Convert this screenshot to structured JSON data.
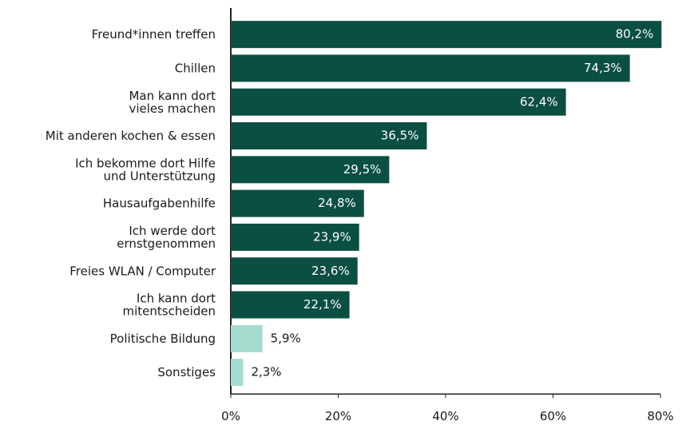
{
  "chart_data": {
    "type": "hbar",
    "categories": [
      "Freund*innen treffen",
      "Chillen",
      "Man kann dort\nvieles machen",
      "Mit anderen kochen & essen",
      "Ich bekomme dort Hilfe\nund Unterstützung",
      "Hausaufgabenhilfe",
      "Ich werde dort\nernstgenommen",
      "Freies WLAN / Computer",
      "Ich kann dort\nmitentscheiden",
      "Politische Bildung",
      "Sonstiges"
    ],
    "values": [
      80.2,
      74.3,
      62.4,
      36.5,
      29.5,
      24.8,
      23.9,
      23.6,
      22.1,
      5.9,
      2.3
    ],
    "value_labels": [
      "80,2%",
      "74,3%",
      "62,4%",
      "36,5%",
      "29,5%",
      "24,8%",
      "23,9%",
      "23,6%",
      "22,1%",
      "5,9%",
      "2,3%"
    ],
    "colors": [
      "#0b4f43",
      "#0b4f43",
      "#0b4f43",
      "#0b4f43",
      "#0b4f43",
      "#0b4f43",
      "#0b4f43",
      "#0b4f43",
      "#0b4f43",
      "#a6dbcf",
      "#a6dbcf"
    ],
    "xlim": [
      0,
      80
    ],
    "xticks": [
      {
        "value": 0,
        "label": "0%"
      },
      {
        "value": 20,
        "label": "20%"
      },
      {
        "value": 40,
        "label": "40%"
      },
      {
        "value": 60,
        "label": "60%"
      },
      {
        "value": 80,
        "label": "80%"
      }
    ]
  }
}
